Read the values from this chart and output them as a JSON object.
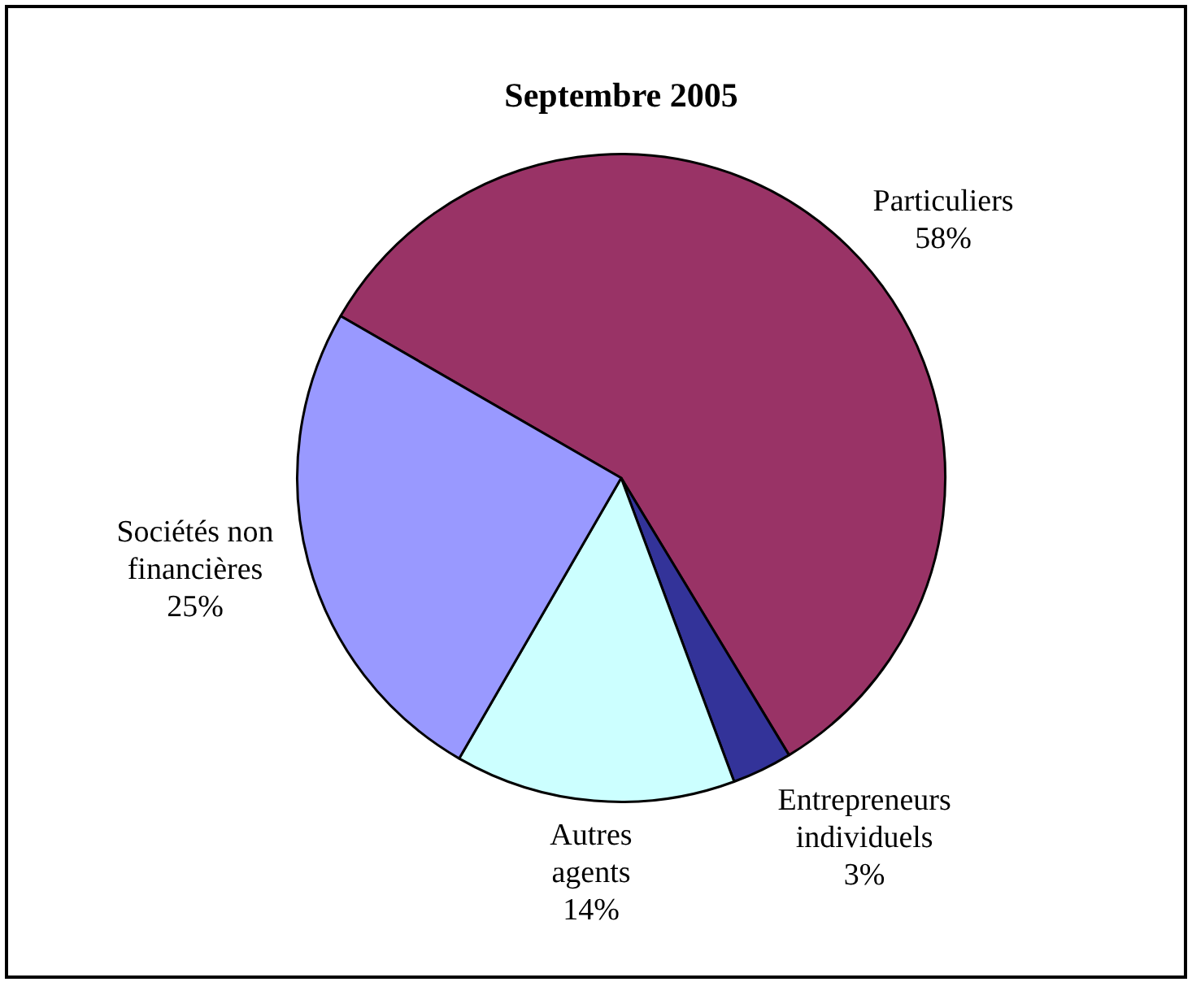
{
  "chart_data": {
    "type": "pie",
    "title": "Septembre 2005",
    "categories": [
      "Particuliers",
      "Entrepreneurs individuels",
      "Autres agents",
      "Sociétés non financières"
    ],
    "values": [
      58,
      3,
      14,
      25
    ],
    "value_labels": [
      "58%",
      "3%",
      "14%",
      "25%"
    ],
    "colors": [
      "#993366",
      "#333399",
      "#ccffff",
      "#9999ff"
    ],
    "legend": false
  }
}
